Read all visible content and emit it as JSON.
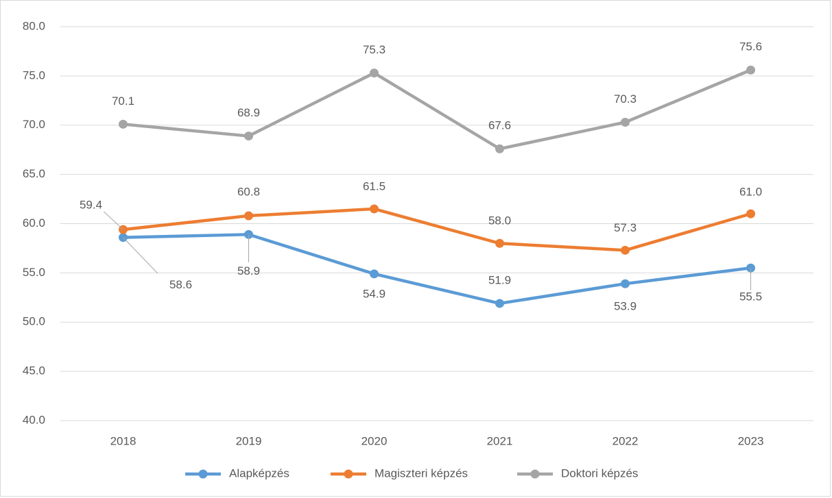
{
  "chart_data": {
    "type": "line",
    "categories": [
      "2018",
      "2019",
      "2020",
      "2021",
      "2022",
      "2023"
    ],
    "series": [
      {
        "name": "Alapképzés",
        "color": "#5b9bd5",
        "values": [
          58.6,
          58.9,
          54.9,
          51.9,
          53.9,
          55.5
        ],
        "value_labels": [
          "58.6",
          "58.9",
          "54.9",
          "51.9",
          "53.9",
          "55.5"
        ]
      },
      {
        "name": "Magiszteri képzés",
        "color": "#ed7d31",
        "values": [
          59.4,
          60.8,
          61.5,
          58.0,
          57.3,
          61.0
        ],
        "value_labels": [
          "59.4",
          "60.8",
          "61.5",
          "58.0",
          "57.3",
          "61.0"
        ]
      },
      {
        "name": "Doktori képzés",
        "color": "#a5a5a5",
        "values": [
          70.1,
          68.9,
          75.3,
          67.6,
          70.3,
          75.6
        ],
        "value_labels": [
          "70.1",
          "68.9",
          "75.3",
          "67.6",
          "70.3",
          "75.6"
        ]
      }
    ],
    "ylim": [
      40,
      80
    ],
    "yticks": [
      {
        "value": 40,
        "label": "40.0"
      },
      {
        "value": 45,
        "label": "45.0"
      },
      {
        "value": 50,
        "label": "50.0"
      },
      {
        "value": 55,
        "label": "55.0"
      },
      {
        "value": 60,
        "label": "60.0"
      },
      {
        "value": 65,
        "label": "65.0"
      },
      {
        "value": 70,
        "label": "70.0"
      },
      {
        "value": 75,
        "label": "75.0"
      },
      {
        "value": 80,
        "label": "80.0"
      }
    ],
    "grid": true,
    "legend": "bottom"
  }
}
